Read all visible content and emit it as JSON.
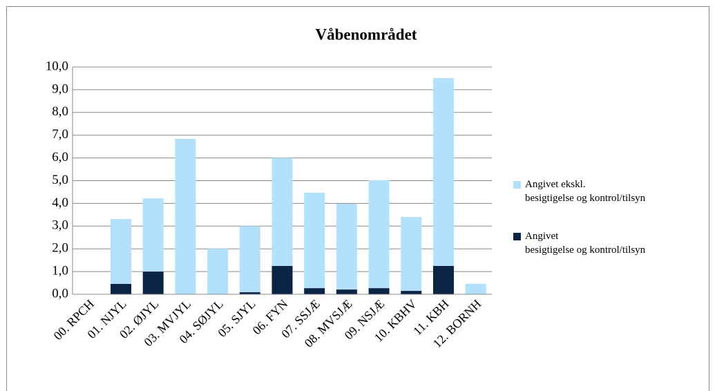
{
  "chart_data": {
    "type": "stacked_bar",
    "title": "Våbenområdet",
    "categories": [
      "00. RPCH",
      "01. NJYL",
      "02. ØJYL",
      "03. MVJYL",
      "04. SØJYL",
      "05. SJYL",
      "06. FYN",
      "07. SSJÆ",
      "08. MVSJÆ",
      "09. NSJÆ",
      "10. KBHV",
      "11. KBH",
      "12. BORNH"
    ],
    "series": [
      {
        "name": "Angivet ekskl.\nbesigtigelse og kontrol/tilsyn",
        "color": "#b3e0fb",
        "values": [
          0,
          2.85,
          3.22,
          6.84,
          2.0,
          2.91,
          4.75,
          4.2,
          3.77,
          4.75,
          3.25,
          8.26,
          0.46
        ]
      },
      {
        "name": "Angivet\nbesigtigelse og kontrol/tilsyn",
        "color": "#0a2444",
        "values": [
          0,
          0.46,
          1.0,
          0,
          0,
          0.09,
          1.25,
          0.27,
          0.21,
          0.27,
          0.15,
          1.25,
          0
        ]
      }
    ],
    "ylim": [
      0,
      10
    ],
    "yticks": [
      {
        "value": 0,
        "label": "0,0"
      },
      {
        "value": 1,
        "label": "1,0"
      },
      {
        "value": 2,
        "label": "2,0"
      },
      {
        "value": 3,
        "label": "3,0"
      },
      {
        "value": 4,
        "label": "4,0"
      },
      {
        "value": 5,
        "label": "5,0"
      },
      {
        "value": 6,
        "label": "6,0"
      },
      {
        "value": 7,
        "label": "7,0"
      },
      {
        "value": 8,
        "label": "8,0"
      },
      {
        "value": 9,
        "label": "9,0"
      },
      {
        "value": 10,
        "label": "10,0"
      }
    ],
    "grid": true,
    "legend": "right"
  }
}
